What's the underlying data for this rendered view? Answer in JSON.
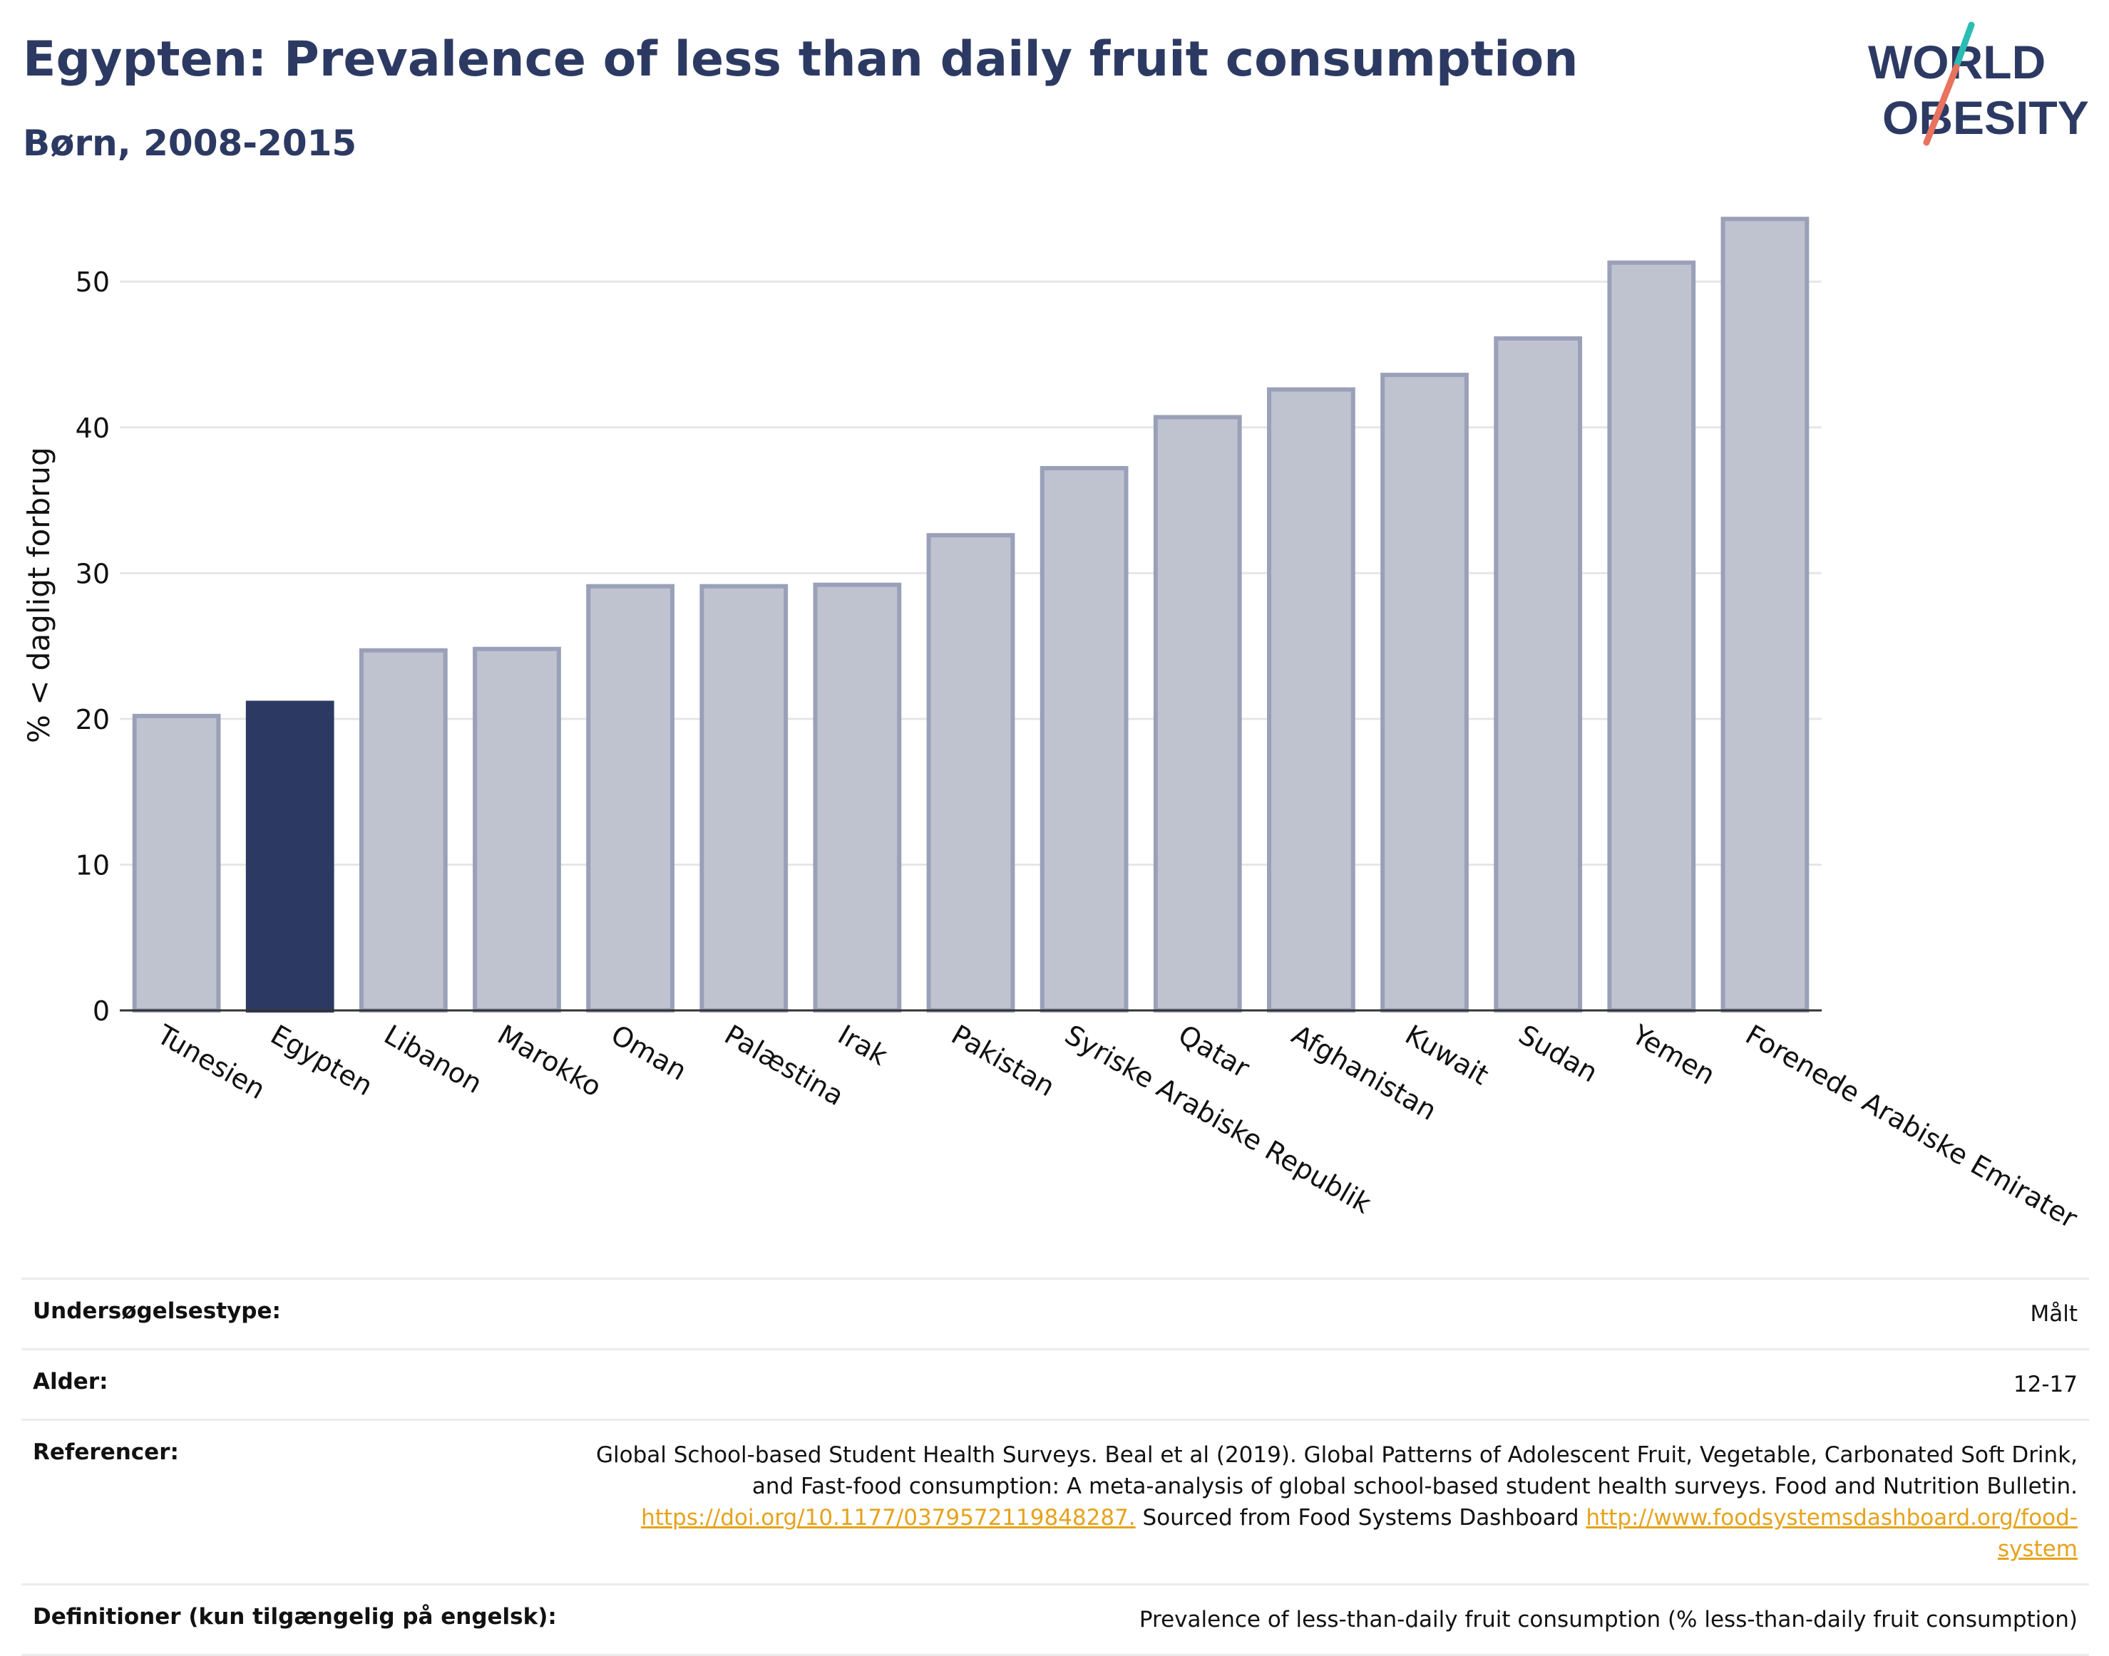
{
  "title": "Egypten: Prevalence of less than daily fruit consumption",
  "subtitle": "Børn, 2008-2015",
  "logo": {
    "line1": "WORLD",
    "line2": "OBESITY"
  },
  "colors": {
    "highlight": "#2c3a63",
    "bar_fill": "#bfc3d0",
    "bar_stroke": "#9aa0b8",
    "brand_text": "#2c3a63",
    "logo_teal": "#2bbcb3",
    "logo_coral": "#e8735f",
    "link": "#e5a31c",
    "grid": "#e6e6e6"
  },
  "chart_data": {
    "type": "bar",
    "categories": [
      "Tunesien",
      "Egypten",
      "Libanon",
      "Marokko",
      "Oman",
      "Palæstina",
      "Irak",
      "Pakistan",
      "Syriske Arabiske Republik",
      "Qatar",
      "Afghanistan",
      "Kuwait",
      "Sudan",
      "Yemen",
      "Forenede Arabiske Emirater"
    ],
    "values": [
      20.2,
      21.1,
      24.7,
      24.8,
      29.1,
      29.1,
      29.2,
      32.6,
      37.2,
      40.7,
      42.6,
      43.6,
      46.1,
      51.3,
      54.3
    ],
    "highlight": "Egypten",
    "ylabel": "% < dagligt forbrug",
    "xlabel": "",
    "ylim": [
      0,
      57
    ],
    "yticks": [
      0,
      10,
      20,
      30,
      40,
      50
    ],
    "grid": true,
    "legend": "none"
  },
  "meta": [
    {
      "label": "Undersøgelsestype:",
      "value": "Målt"
    },
    {
      "label": "Alder:",
      "value": "12-17"
    },
    {
      "label": "Referencer:",
      "value_lines": [
        "Global School-based Student Health Surveys. Beal et al (2019). Global Patterns of Adolescent Fruit, Vegetable, Carbonated Soft Drink,",
        "and Fast-food consumption: A meta-analysis of global school-based student health surveys. Food and Nutrition Bulletin."
      ],
      "link1": "https://doi.org/10.1177/0379572119848287.",
      "mid_text": " Sourced from Food Systems Dashboard ",
      "link2_part1": "http://www.foodsystemsdashboard.org/food-",
      "link2_part2": "system"
    },
    {
      "label": "Definitioner (kun tilgængelig på engelsk):",
      "value": "Prevalence of less-than-daily fruit consumption (% less-than-daily fruit consumption)"
    }
  ]
}
